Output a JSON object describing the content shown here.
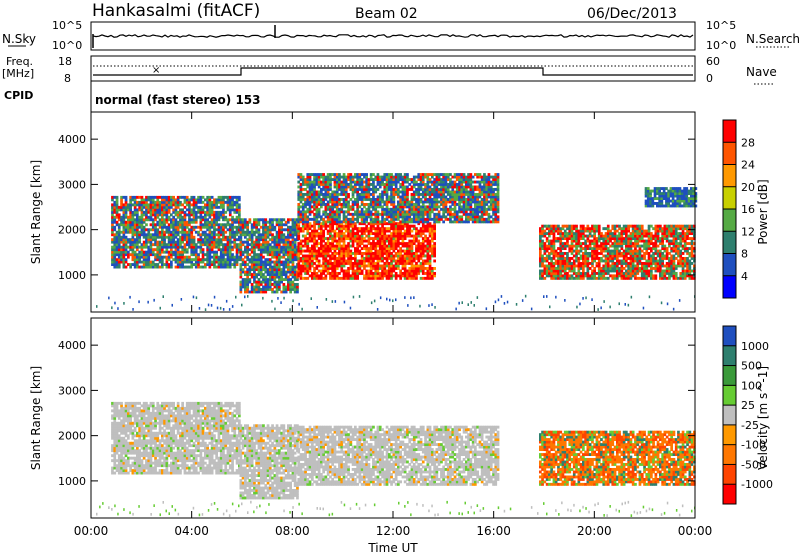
{
  "header": {
    "station": "Hankasalmi (fitACF)",
    "beam": "Beam 02",
    "date": "06/Dec/2013"
  },
  "top_panels": {
    "nsky_label": "N.Sky",
    "nsky_ticks": [
      "10^5",
      "10^0"
    ],
    "nsearch_label": "N.Search",
    "nsearch_ticks": [
      "10^5",
      "10^0"
    ],
    "freq_label_1": "Freq.",
    "freq_label_2": "[MHz]",
    "freq_ticks": [
      "18",
      "8"
    ],
    "nave_label": "Nave",
    "nave_ticks": [
      "60",
      "0"
    ],
    "cpid_label": "CPID",
    "cpid_text": "normal (fast stereo) 153"
  },
  "chart_data": [
    {
      "type": "heatmap",
      "panel": "power",
      "xlabel": "",
      "ylabel": "Slant Range [km]",
      "yticks": [
        1000,
        2000,
        3000,
        4000
      ],
      "ylim": [
        180,
        4600
      ],
      "xlim_hours": [
        0,
        24
      ],
      "colorbar_label": "Power [dB]",
      "colorbar_ticks": [
        4,
        8,
        12,
        16,
        20,
        24,
        28
      ],
      "colorbar_colors": [
        "#0000ff",
        "#1f4fbf",
        "#2e7f6e",
        "#55aa44",
        "#c8d000",
        "#ff9900",
        "#ff5500",
        "#ff0000"
      ],
      "regions": [
        {
          "t0": 0.8,
          "t1": 5.9,
          "r0": 1150,
          "r1": 2700,
          "level": "low-medium"
        },
        {
          "t0": 5.9,
          "t1": 8.2,
          "r0": 600,
          "r1": 2200,
          "level": "low-medium"
        },
        {
          "t0": 8.2,
          "t1": 13.6,
          "r0": 900,
          "r1": 2150,
          "level": "high"
        },
        {
          "t0": 8.2,
          "t1": 16.2,
          "r0": 2150,
          "r1": 3200,
          "level": "low-medium"
        },
        {
          "t0": 17.8,
          "t1": 24.0,
          "r0": 900,
          "r1": 2100,
          "level": "medium"
        },
        {
          "t0": 22.0,
          "t1": 24.0,
          "r0": 2500,
          "r1": 2900,
          "level": "low"
        }
      ]
    },
    {
      "type": "heatmap",
      "panel": "velocity",
      "xlabel": "Time UT",
      "ylabel": "Slant Range [km]",
      "yticks": [
        1000,
        2000,
        3000,
        4000
      ],
      "ylim": [
        180,
        4600
      ],
      "xticks": [
        "00:00",
        "04:00",
        "08:00",
        "12:00",
        "16:00",
        "20:00",
        "00:00"
      ],
      "xlim_hours": [
        0,
        24
      ],
      "colorbar_label": "Velocity [m s^-1]",
      "colorbar_ticks": [
        1000,
        500,
        100,
        25,
        -25,
        -100,
        -500,
        -1000
      ],
      "colorbar_colors": [
        "#1f4fbf",
        "#2e7f6e",
        "#3a9a3a",
        "#66cc33",
        "#bfbfbf",
        "#ff9900",
        "#ff7700",
        "#ff4400",
        "#ff0000"
      ],
      "regions": [
        {
          "t0": 0.8,
          "t1": 5.9,
          "r0": 1150,
          "r1": 2700,
          "level": "ground-scatter"
        },
        {
          "t0": 5.9,
          "t1": 8.2,
          "r0": 600,
          "r1": 2200,
          "level": "ground-scatter"
        },
        {
          "t0": 8.2,
          "t1": 16.2,
          "r0": 900,
          "r1": 2200,
          "level": "ground-scatter"
        },
        {
          "t0": 17.8,
          "t1": 24.0,
          "r0": 900,
          "r1": 2100,
          "level": "negative"
        }
      ]
    }
  ]
}
